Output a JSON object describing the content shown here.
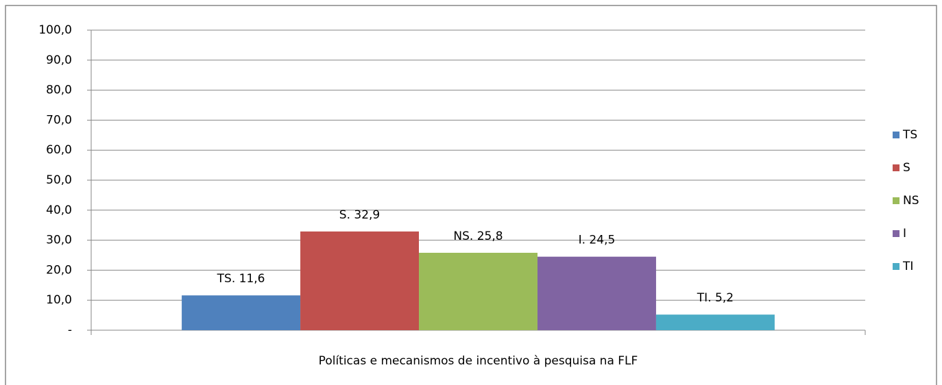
{
  "chart_data": {
    "type": "bar",
    "categories": [
      "Políticas e mecanismos de incentivo à pesquisa na FLF"
    ],
    "series": [
      {
        "name": "TS",
        "color": "#4f81bd",
        "values": [
          11.6
        ],
        "value_labels": [
          "TS.  11,6"
        ]
      },
      {
        "name": "S",
        "color": "#c0504d",
        "values": [
          32.9
        ],
        "value_labels": [
          "S.  32,9"
        ]
      },
      {
        "name": "NS",
        "color": "#9bbb59",
        "values": [
          25.8
        ],
        "value_labels": [
          "NS.  25,8"
        ]
      },
      {
        "name": "I",
        "color": "#8064a2",
        "values": [
          24.5
        ],
        "value_labels": [
          "I.  24,5"
        ]
      },
      {
        "name": "TI",
        "color": "#4bacc6",
        "values": [
          5.2
        ],
        "value_labels": [
          "TI.  5,2"
        ]
      }
    ],
    "ylim": [
      0,
      100
    ],
    "yticks": [
      {
        "value": 0,
        "label": "-"
      },
      {
        "value": 10,
        "label": "10,0"
      },
      {
        "value": 20,
        "label": "20,0"
      },
      {
        "value": 30,
        "label": "30,0"
      },
      {
        "value": 40,
        "label": "40,0"
      },
      {
        "value": 50,
        "label": "50,0"
      },
      {
        "value": 60,
        "label": "60,0"
      },
      {
        "value": 70,
        "label": "70,0"
      },
      {
        "value": 80,
        "label": "80,0"
      },
      {
        "value": 90,
        "label": "90,0"
      },
      {
        "value": 100,
        "label": "100,0"
      }
    ],
    "grid": true,
    "legend": "right"
  }
}
